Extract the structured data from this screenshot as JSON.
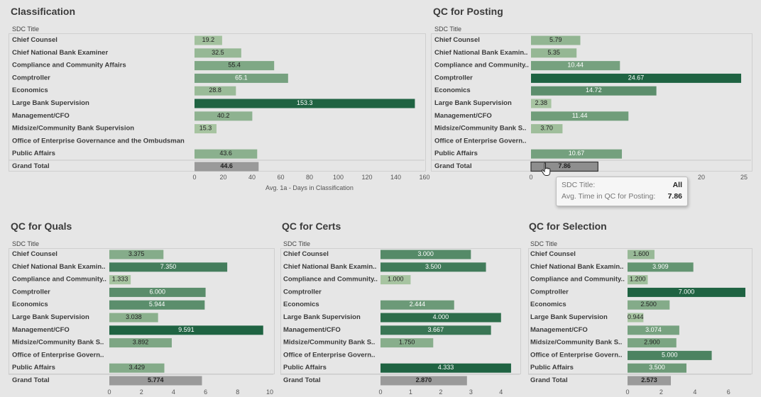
{
  "chart_data": [
    {
      "id": "classification",
      "type": "bar",
      "title": "Classification",
      "row_header": "SDC Title",
      "categories": [
        "Chief Counsel",
        "Chief National Bank Examiner",
        "Compliance and Community Affairs",
        "Comptroller",
        "Economics",
        "Large Bank Supervision",
        "Management/CFO",
        "Midsize/Community Bank Supervision",
        "Office of Enterprise Governance and the Ombudsman",
        "Public Affairs"
      ],
      "values": [
        19.2,
        32.5,
        55.4,
        65.1,
        28.8,
        153.3,
        40.2,
        15.3,
        null,
        43.6
      ],
      "value_labels": [
        "19.2",
        "32.5",
        "55.4",
        "65.1",
        "28.8",
        "153.3",
        "40.2",
        "15.3",
        "",
        "43.6"
      ],
      "grand_total_label": "Grand Total",
      "grand_total": 44.6,
      "grand_total_text": "44.6",
      "xlim": [
        0,
        160
      ],
      "ticks": [
        0,
        20,
        40,
        60,
        80,
        100,
        120,
        140,
        160
      ],
      "xlabel": "Avg. 1a - Days in Classification"
    },
    {
      "id": "qc-posting",
      "type": "bar",
      "title": "QC for Posting",
      "row_header": "SDC Title",
      "categories": [
        "Chief Counsel",
        "Chief National Bank Examin..",
        "Compliance and Community..",
        "Comptroller",
        "Economics",
        "Large Bank Supervision",
        "Management/CFO",
        "Midsize/Community Bank S..",
        "Office of Enterprise Govern..",
        "Public Affairs"
      ],
      "values": [
        5.79,
        5.35,
        10.44,
        24.67,
        14.72,
        2.38,
        11.44,
        3.7,
        null,
        10.67
      ],
      "value_labels": [
        "5.79",
        "5.35",
        "10.44",
        "24.67",
        "14.72",
        "2.38",
        "11.44",
        "3.70",
        "",
        "10.67"
      ],
      "grand_total_label": "Grand Total",
      "grand_total": 7.86,
      "grand_total_text": "7.86",
      "xlim": [
        0,
        25
      ],
      "ticks": [
        0,
        20,
        25
      ],
      "xlabel": ""
    },
    {
      "id": "qc-quals",
      "type": "bar",
      "title": "QC for Quals",
      "row_header": "SDC Title",
      "categories": [
        "Chief Counsel",
        "Chief National Bank Examin..",
        "Compliance and Community..",
        "Comptroller",
        "Economics",
        "Large Bank Supervision",
        "Management/CFO",
        "Midsize/Community Bank S..",
        "Office of Enterprise Govern..",
        "Public Affairs"
      ],
      "values": [
        3.375,
        7.35,
        1.333,
        6.0,
        5.944,
        3.038,
        9.591,
        3.892,
        null,
        3.429
      ],
      "value_labels": [
        "3.375",
        "7.350",
        "1.333",
        "6.000",
        "5.944",
        "3.038",
        "9.591",
        "3.892",
        "",
        "3.429"
      ],
      "grand_total_label": "Grand Total",
      "grand_total": 5.774,
      "grand_total_text": "5.774",
      "xlim": [
        0,
        10
      ],
      "ticks": [
        0,
        2,
        4,
        6,
        8,
        10
      ],
      "xlabel": ""
    },
    {
      "id": "qc-certs",
      "type": "bar",
      "title": "QC for Certs",
      "row_header": "SDC Title",
      "categories": [
        "Chief Counsel",
        "Chief National Bank Examin..",
        "Compliance and Community..",
        "Comptroller",
        "Economics",
        "Large Bank Supervision",
        "Management/CFO",
        "Midsize/Community Bank S..",
        "Office of Enterprise Govern..",
        "Public Affairs"
      ],
      "values": [
        3.0,
        3.5,
        1.0,
        null,
        2.444,
        4.0,
        3.667,
        1.75,
        null,
        4.333
      ],
      "value_labels": [
        "3.000",
        "3.500",
        "1.000",
        "",
        "2.444",
        "4.000",
        "3.667",
        "1.750",
        "",
        "4.333"
      ],
      "grand_total_label": "Grand Total",
      "grand_total": 2.87,
      "grand_total_text": "2.870",
      "xlim": [
        0,
        4.5
      ],
      "ticks": [
        0,
        1,
        2,
        3,
        4
      ],
      "xlabel": ""
    },
    {
      "id": "qc-selection",
      "type": "bar",
      "title": "QC for Selection",
      "row_header": "SDC Title",
      "categories": [
        "Chief Counsel",
        "Chief National Bank Examin..",
        "Compliance and Community..",
        "Comptroller",
        "Economics",
        "Large Bank Supervision",
        "Management/CFO",
        "Midsize/Community Bank S..",
        "Office of Enterprise Govern..",
        "Public Affairs"
      ],
      "values": [
        1.6,
        3.909,
        1.2,
        7.0,
        2.5,
        0.944,
        3.074,
        2.9,
        5.0,
        3.5
      ],
      "value_labels": [
        "1.600",
        "3.909",
        "1.200",
        "7.000",
        "2.500",
        "0.944",
        "3.074",
        "2.900",
        "5.000",
        "3.500"
      ],
      "grand_total_label": "Grand Total",
      "grand_total": 2.573,
      "grand_total_text": "2.573",
      "xlim": [
        0,
        7
      ],
      "ticks": [
        0,
        2,
        4,
        6
      ],
      "xlabel": ""
    }
  ],
  "colors": {
    "bar_light": "#a7c4a1",
    "bar_dark": "#1f6342",
    "grand_total": "#9a9a9a",
    "grand_total_highlight": "#8e8e8e"
  },
  "tooltip": {
    "title_label": "SDC Title:",
    "title_value": "All",
    "metric_label": "Avg. Time in QC for Posting:",
    "metric_value": "7.86"
  },
  "icons": {
    "cursor": "hand-pointer-icon"
  }
}
